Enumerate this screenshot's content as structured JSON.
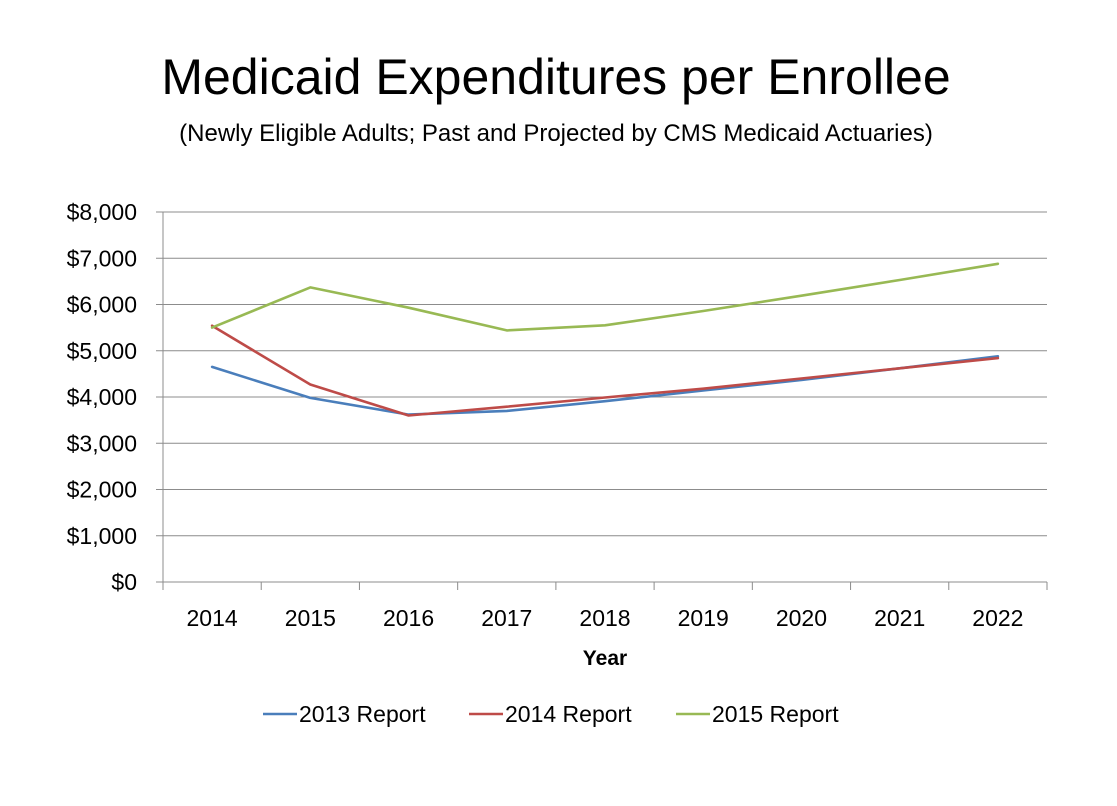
{
  "chart_data": {
    "type": "line",
    "title": "Medicaid Expenditures per Enrollee",
    "subtitle": "(Newly Eligible Adults; Past and Projected by CMS Medicaid Actuaries)",
    "xlabel": "Year",
    "ylabel": "",
    "categories": [
      "2014",
      "2015",
      "2016",
      "2017",
      "2018",
      "2019",
      "2020",
      "2021",
      "2022"
    ],
    "ylim": [
      0,
      8000
    ],
    "yticks": [
      0,
      1000,
      2000,
      3000,
      4000,
      5000,
      6000,
      7000,
      8000
    ],
    "ytick_labels": [
      "$0",
      "$1,000",
      "$2,000",
      "$3,000",
      "$4,000",
      "$5,000",
      "$6,000",
      "$7,000",
      "$8,000"
    ],
    "grid": true,
    "legend_position": "bottom",
    "series": [
      {
        "name": "2013 Report",
        "color": "#4a7ebb",
        "values": [
          4650,
          3980,
          3620,
          3700,
          3910,
          4140,
          4370,
          4620,
          4880
        ]
      },
      {
        "name": "2014 Report",
        "color": "#be4b48",
        "values": [
          5540,
          4270,
          3600,
          3790,
          3990,
          4180,
          4400,
          4620,
          4840
        ]
      },
      {
        "name": "2015 Report",
        "color": "#98b954",
        "values": [
          5500,
          6370,
          5930,
          5440,
          5550,
          5860,
          6190,
          6530,
          6880
        ]
      }
    ]
  }
}
